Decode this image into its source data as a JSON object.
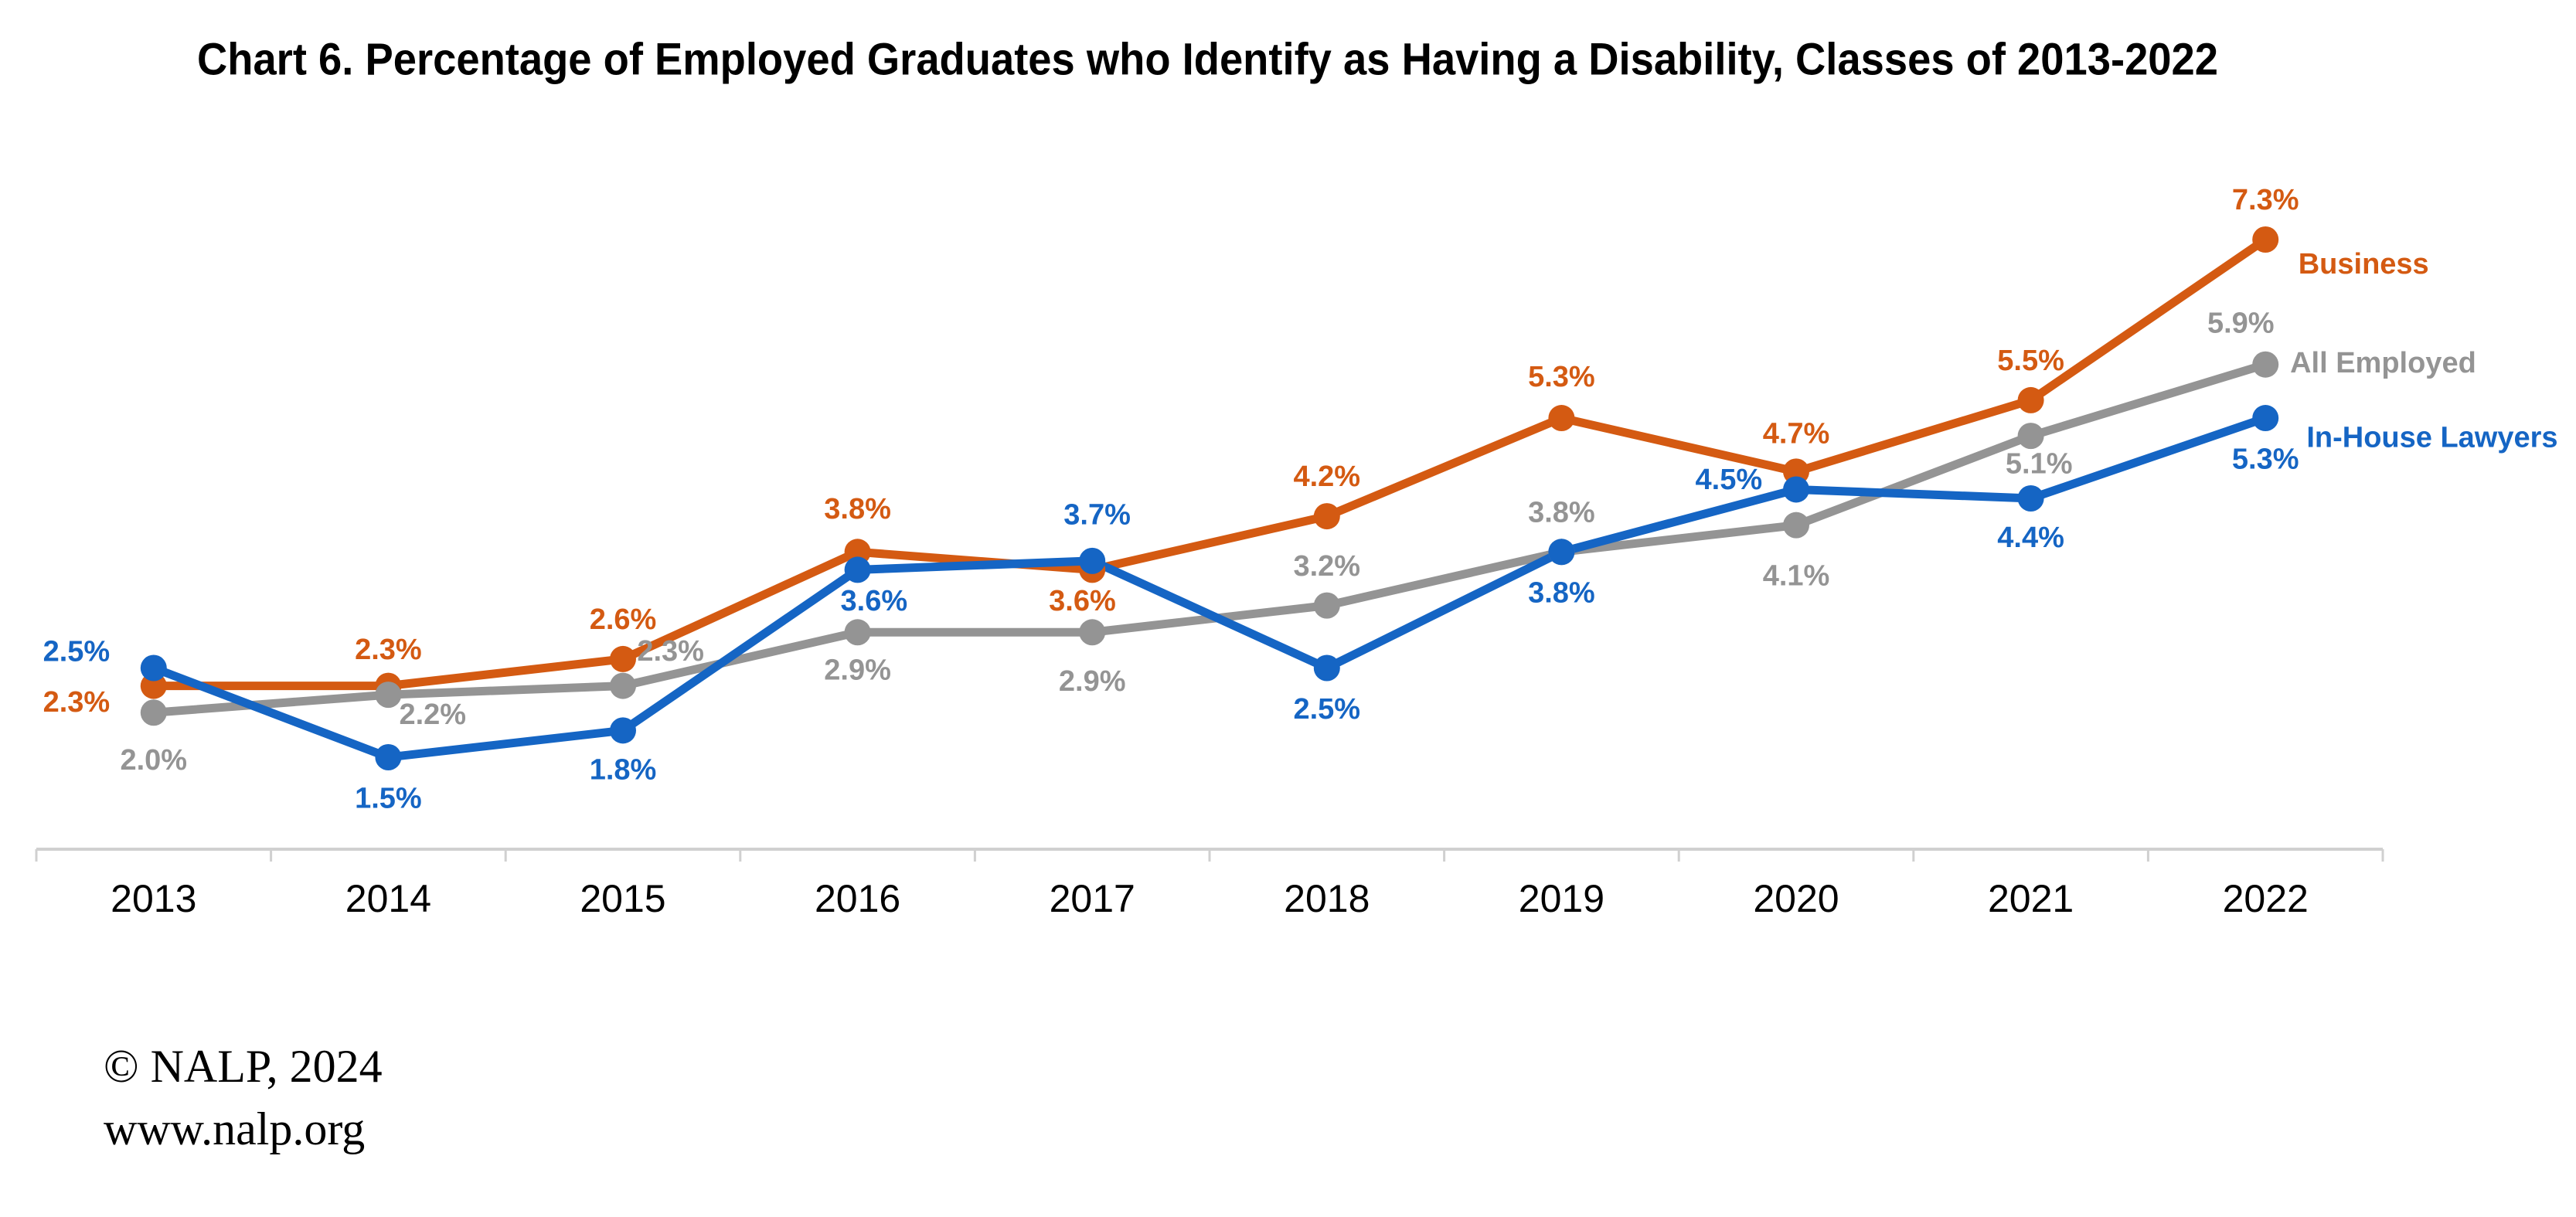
{
  "chart_data": {
    "type": "line",
    "title": "Chart 6. Percentage of Employed Graduates who Identify as Having a Disability, Classes of 2013-2022",
    "categories": [
      "2013",
      "2014",
      "2015",
      "2016",
      "2017",
      "2018",
      "2019",
      "2020",
      "2021",
      "2022"
    ],
    "series": [
      {
        "name": "Business",
        "color": "#d45a12",
        "values": [
          2.3,
          2.3,
          2.6,
          3.8,
          3.6,
          4.2,
          5.3,
          4.7,
          5.5,
          7.3
        ],
        "value_labels": [
          "2.3%",
          "2.3%",
          "2.6%",
          "3.8%",
          "3.6%",
          "4.2%",
          "5.3%",
          "4.7%",
          "5.5%",
          "7.3%"
        ]
      },
      {
        "name": "All Employed",
        "color": "#949494",
        "values": [
          2.0,
          2.2,
          2.3,
          2.9,
          2.9,
          3.2,
          3.8,
          4.1,
          5.1,
          5.9
        ],
        "value_labels": [
          "2.0%",
          "2.2%",
          "2.3%",
          "2.9%",
          "2.9%",
          "3.2%",
          "3.8%",
          "4.1%",
          "5.1%",
          "5.9%"
        ]
      },
      {
        "name": "In-House Lawyers",
        "color": "#1565c4",
        "values": [
          2.5,
          1.5,
          1.8,
          3.6,
          3.7,
          2.5,
          3.8,
          4.5,
          4.4,
          5.3
        ],
        "value_labels": [
          "2.5%",
          "1.5%",
          "1.8%",
          "3.6%",
          "3.7%",
          "2.5%",
          "3.8%",
          "4.5%",
          "4.4%",
          "5.3%"
        ]
      }
    ]
  },
  "footer": {
    "copyright": "© NALP, 2024",
    "url": "www.nalp.org"
  }
}
